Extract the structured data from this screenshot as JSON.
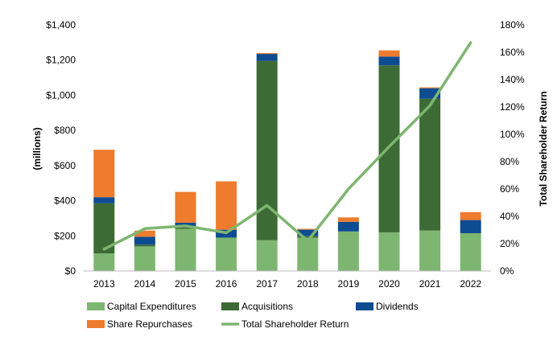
{
  "chart_data": {
    "type": "bar",
    "stacked": true,
    "categories": [
      "2013",
      "2014",
      "2015",
      "2016",
      "2017",
      "2018",
      "2019",
      "2020",
      "2021",
      "2022"
    ],
    "ylabel": "(millions)",
    "y2label": "Total Shareholder Return",
    "ylim": [
      0,
      1400
    ],
    "y2lim": [
      0,
      180
    ],
    "yticks": [
      "$0",
      "$200",
      "$400",
      "$600",
      "$800",
      "$1,000",
      "$1,200",
      "$1,400"
    ],
    "y2ticks": [
      "0%",
      "20%",
      "40%",
      "60%",
      "80%",
      "100%",
      "120%",
      "140%",
      "160%",
      "180%"
    ],
    "grid": false,
    "legend_position": "bottom",
    "series": [
      {
        "name": "Capital Expenditures",
        "color": "#7db670",
        "kind": "bar",
        "values": [
          100,
          140,
          240,
          190,
          175,
          190,
          225,
          220,
          230,
          215
        ]
      },
      {
        "name": "Acquisitions",
        "color": "#3d6b35",
        "kind": "bar",
        "values": [
          285,
          10,
          15,
          0,
          1020,
          10,
          0,
          950,
          750,
          0
        ]
      },
      {
        "name": "Dividends",
        "color": "#0e4c92",
        "kind": "bar",
        "values": [
          35,
          45,
          20,
          45,
          40,
          35,
          55,
          50,
          60,
          75
        ]
      },
      {
        "name": "Share Repurchases",
        "color": "#ef7b2d",
        "kind": "bar",
        "values": [
          270,
          35,
          175,
          275,
          5,
          5,
          25,
          35,
          5,
          45
        ]
      },
      {
        "name": "Total Shareholder Return",
        "color": "#7db670",
        "kind": "line",
        "axis": "right",
        "values": [
          16,
          31,
          33,
          28,
          48,
          22,
          60,
          91,
          121,
          167
        ]
      }
    ]
  }
}
